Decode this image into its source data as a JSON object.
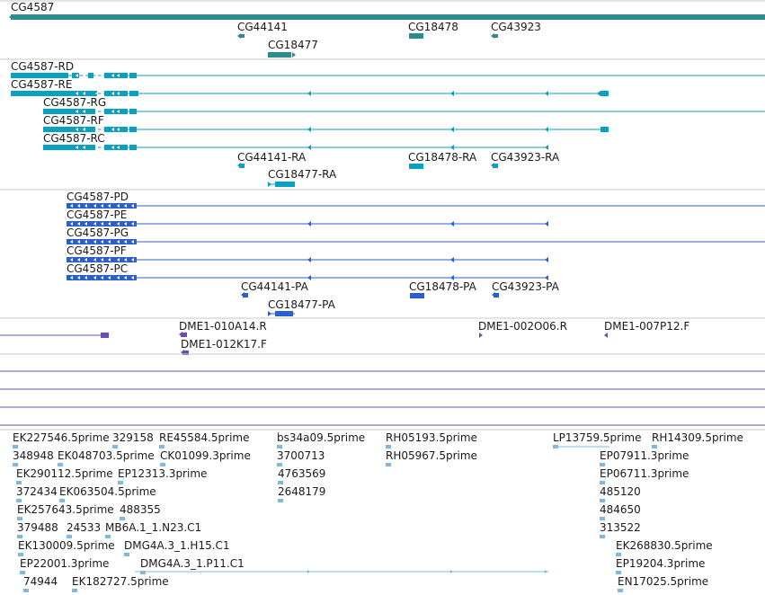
{
  "colors": {
    "gene": "#2e8b8b",
    "transcript": "#0aa0c4",
    "protein": "#2a5fd0",
    "clone": "#6a4fb0",
    "est": "#80b8e2",
    "separator": "#c8c8c8",
    "empty_track": "#6a4fb0"
  },
  "tracks": {
    "genes": [
      {
        "name": "CG4587",
        "label": "CG4587"
      },
      {
        "name": "CG44141",
        "label": "CG44141"
      },
      {
        "name": "CG18478",
        "label": "CG18478"
      },
      {
        "name": "CG43923",
        "label": "CG43923"
      },
      {
        "name": "CG18477",
        "label": "CG18477"
      }
    ],
    "transcripts": [
      {
        "name": "CG4587-RD",
        "label": "CG4587-RD"
      },
      {
        "name": "CG4587-RE",
        "label": "CG4587-RE"
      },
      {
        "name": "CG4587-RG",
        "label": "CG4587-RG"
      },
      {
        "name": "CG4587-RF",
        "label": "CG4587-RF"
      },
      {
        "name": "CG4587-RC",
        "label": "CG4587-RC"
      },
      {
        "name": "CG44141-RA",
        "label": "CG44141-RA"
      },
      {
        "name": "CG18478-RA",
        "label": "CG18478-RA"
      },
      {
        "name": "CG43923-RA",
        "label": "CG43923-RA"
      },
      {
        "name": "CG18477-RA",
        "label": "CG18477-RA"
      }
    ],
    "proteins": [
      {
        "name": "CG4587-PD",
        "label": "CG4587-PD"
      },
      {
        "name": "CG4587-PE",
        "label": "CG4587-PE"
      },
      {
        "name": "CG4587-PG",
        "label": "CG4587-PG"
      },
      {
        "name": "CG4587-PF",
        "label": "CG4587-PF"
      },
      {
        "name": "CG4587-PC",
        "label": "CG4587-PC"
      },
      {
        "name": "CG44141-PA",
        "label": "CG44141-PA"
      },
      {
        "name": "CG18478-PA",
        "label": "CG18478-PA"
      },
      {
        "name": "CG43923-PA",
        "label": "CG43923-PA"
      },
      {
        "name": "CG18477-PA",
        "label": "CG18477-PA"
      }
    ],
    "clones": [
      {
        "name": "DME1-010A14.R",
        "label": "DME1-010A14.R"
      },
      {
        "name": "DME1-002O06.R",
        "label": "DME1-002O06.R"
      },
      {
        "name": "DME1-007P12.F",
        "label": "DME1-007P12.F"
      },
      {
        "name": "DME1-012K17.F",
        "label": "DME1-012K17.F"
      }
    ],
    "ests": [
      "EK227546.5prime",
      "329158",
      "RE45584.5prime",
      "bs34a09.5prime",
      "RH05193.5prime",
      "LP13759.5prime",
      "RH14309.5prime",
      "348948",
      "EK048703.5prime",
      "CK01099.3prime",
      "3700713",
      "RH05967.5prime",
      "EP07911.3prime",
      "EK290112.5prime",
      "EP12313.3prime",
      "4763569",
      "EP06711.3prime",
      "372434",
      "EK063504.5prime",
      "2648179",
      "485120",
      "EK257643.5prime",
      "488355",
      "484650",
      "379488",
      "24533",
      "MB6A.1_1.N23.C1",
      "313522",
      "EK130009.5prime",
      "DMG4A.3_1.H15.C1",
      "EK268830.5prime",
      "EP22001.3prime",
      "DMG4A.3_1.P11.C1",
      "EP19204.3prime",
      "74944",
      "EK182727.5prime",
      "EN17025.5prime"
    ]
  }
}
